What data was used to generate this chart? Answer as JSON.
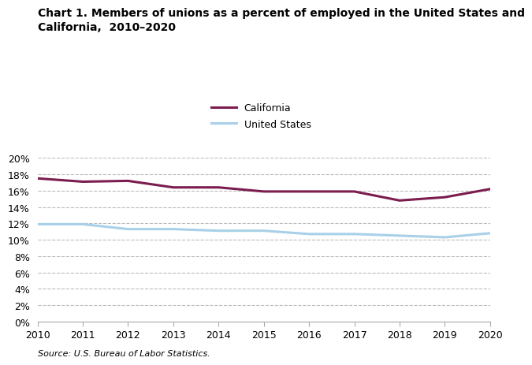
{
  "title": "Chart 1. Members of unions as a percent of employed in the United States and\nCalifornia,  2010–2020",
  "years": [
    2010,
    2011,
    2012,
    2013,
    2014,
    2015,
    2016,
    2017,
    2018,
    2019,
    2020
  ],
  "california": [
    17.5,
    17.1,
    17.2,
    16.4,
    16.4,
    15.9,
    15.9,
    15.9,
    14.8,
    15.2,
    16.2
  ],
  "us": [
    11.9,
    11.9,
    11.3,
    11.3,
    11.1,
    11.1,
    10.7,
    10.7,
    10.5,
    10.3,
    10.8
  ],
  "california_color": "#7B1D4E",
  "us_color": "#A8D0E8",
  "california_label": "California",
  "us_label": "United States",
  "ylim": [
    0,
    20
  ],
  "yticks": [
    0,
    2,
    4,
    6,
    8,
    10,
    12,
    14,
    16,
    18,
    20
  ],
  "source": "Source: U.S. Bureau of Labor Statistics.",
  "background_color": "#ffffff",
  "grid_color": "#bbbbbb",
  "line_width": 2.2,
  "title_fontsize": 10,
  "tick_fontsize": 9,
  "legend_fontsize": 9,
  "source_fontsize": 8
}
